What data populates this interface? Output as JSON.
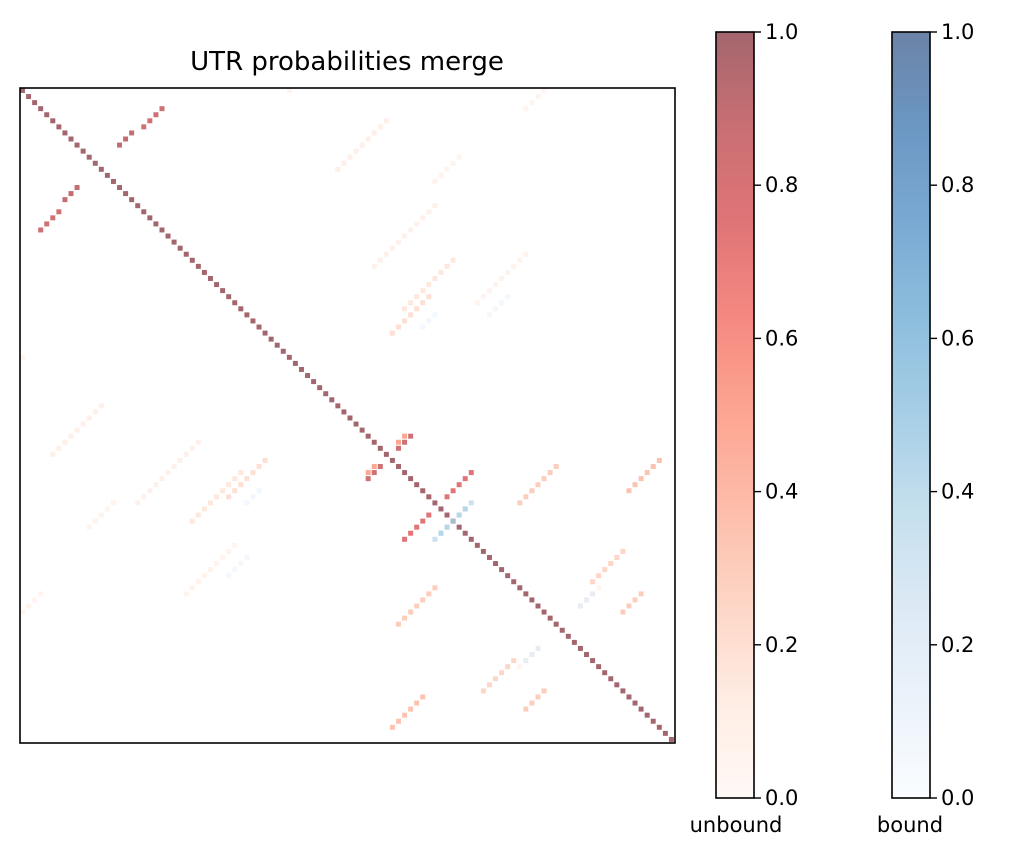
{
  "chart_data": {
    "type": "heatmap",
    "title": "UTR probabilities merge",
    "xlabel": "",
    "ylabel": "",
    "n": 108,
    "axis_ticks": "hidden",
    "grid": false,
    "colorbars": [
      {
        "name": "unbound",
        "label": "unbound",
        "colormap": "Reds",
        "alpha": 0.6,
        "range": [
          0.0,
          1.0
        ],
        "ticks": [
          "0.0",
          "0.2",
          "0.4",
          "0.6",
          "0.8",
          "1.0"
        ],
        "placement": "right"
      },
      {
        "name": "bound",
        "label": "bound",
        "colormap": "Blues",
        "alpha": 0.6,
        "range": [
          0.0,
          1.0
        ],
        "ticks": [
          "0.0",
          "0.2",
          "0.4",
          "0.6",
          "0.8",
          "1.0"
        ],
        "placement": "far-right"
      }
    ],
    "diagonal": {
      "layer": "unbound",
      "value": 1.0
    },
    "segments": [
      {
        "layer": "unbound",
        "start": [
          3,
          23
        ],
        "end": [
          1,
          3
        ],
        "length": 4,
        "value": 0.85,
        "symmetric": true
      },
      {
        "layer": "unbound",
        "start": [
          16,
          9
        ],
        "end": [
          9,
          21
        ],
        "length": 3,
        "value": 0.9,
        "symmetric": true
      },
      {
        "layer": "unbound",
        "start": [
          62,
          59
        ],
        "end": [
          59,
          70
        ],
        "length": 3,
        "value": 0.85,
        "symmetric": true
      },
      {
        "layer": "unbound",
        "start": [
          57,
          63
        ],
        "end": [
          55,
          63
        ],
        "length": 2,
        "value": 0.5,
        "symmetric": true
      },
      {
        "layer": "unbound",
        "start": [
          82,
          68
        ],
        "end": [
          66,
          73
        ],
        "length": 7,
        "value": 0.3,
        "symmetric": true
      },
      {
        "layer": "unbound",
        "start": [
          70,
          67
        ],
        "end": [
          70,
          78
        ],
        "length": 5,
        "value": 0.75,
        "symmetric": true
      },
      {
        "layer": "unbound",
        "start": [
          100,
          66
        ],
        "end": [
          90,
          75
        ],
        "length": 6,
        "value": 0.35,
        "symmetric": true
      },
      {
        "layer": "unbound",
        "start": [
          94,
          81
        ],
        "end": [
          78,
          95
        ],
        "length": 6,
        "value": 0.25,
        "symmetric": true
      },
      {
        "layer": "unbound",
        "start": [
          83,
          102
        ],
        "end": [
          99,
          102
        ],
        "length": 4,
        "value": 0.3,
        "symmetric": true
      },
      {
        "layer": "unbound",
        "start": [
          63,
          36
        ],
        "end": [
          46,
          86
        ],
        "length": 9,
        "value": 0.15,
        "symmetric": true
      },
      {
        "layer": "unbound",
        "start": [
          34,
          67
        ],
        "end": [
          35,
          61
        ],
        "length": 7,
        "value": 0.2,
        "symmetric": true
      },
      {
        "layer": "unbound",
        "start": [
          52,
          13
        ],
        "end": [
          14,
          35
        ],
        "length": 9,
        "value": 0.1,
        "symmetric": true
      },
      {
        "layer": "unbound",
        "start": [
          58,
          29
        ],
        "end": [
          58,
          40
        ],
        "length": 11,
        "value": 0.08,
        "symmetric": true
      },
      {
        "layer": "unbound",
        "start": [
          75,
          35
        ],
        "end": [
          35,
          52
        ],
        "length": 9,
        "value": 0.06,
        "symmetric": true
      },
      {
        "layer": "unbound",
        "start": [
          44,
          0
        ],
        "end": [
          1,
          51
        ],
        "length": 5,
        "value": 0.05,
        "symmetric": true
      },
      {
        "layer": "unbound",
        "start": [
          0,
          86
        ],
        "end": [
          106,
          35
        ],
        "length": 4,
        "value": 0.05,
        "symmetric": true
      },
      {
        "layer": "unbound",
        "start": [
          11,
          72
        ],
        "end": [
          86,
          104
        ],
        "length": 5,
        "value": 0.06,
        "symmetric": true
      },
      {
        "layer": "unbound",
        "start": [
          82,
          95
        ],
        "end": [
          45,
          0
        ],
        "length": 4,
        "value": 0.05,
        "symmetric": true
      },
      {
        "layer": "bound",
        "start": [
          68,
          74
        ],
        "end": [
          59,
          95
        ],
        "length": 6,
        "value": 0.35,
        "symmetric": true
      },
      {
        "layer": "bound",
        "start": [
          83,
          94
        ],
        "end": [
          84,
          82
        ],
        "length": 3,
        "value": 0.15,
        "symmetric": true
      },
      {
        "layer": "bound",
        "start": [
          66,
          39
        ],
        "end": [
          3,
          86
        ],
        "length": 3,
        "value": 0.08,
        "symmetric": true
      },
      {
        "layer": "bound",
        "start": [
          77,
          37
        ],
        "end": [
          65,
          26
        ],
        "length": 4,
        "value": 0.06,
        "symmetric": true
      }
    ]
  }
}
